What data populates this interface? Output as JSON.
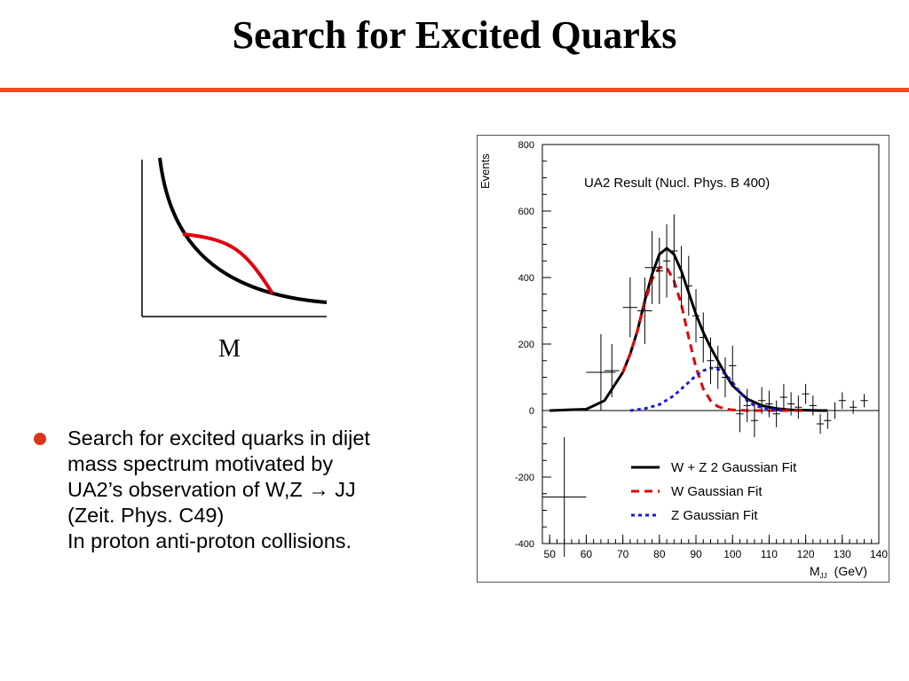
{
  "slide": {
    "title": "Search for Excited Quarks",
    "accent_color": "#ef4a1f"
  },
  "sketch": {
    "axis_label": "M",
    "background_curve_color": "#000000",
    "signal_curve_color": "#e0000b"
  },
  "bullet": {
    "marker_color": "#e0341a",
    "lines": [
      "Search for excited quarks in dijet",
      "mass spectrum motivated by",
      "UA2’s observation of W,Z → JJ",
      "(Zeit. Phys. C49)",
      "In proton anti-proton collisions."
    ]
  },
  "chart_data": {
    "type": "line",
    "title": "UA2 Result (Nucl. Phys. B 400)",
    "ylabel": "Events",
    "xlabel": "M",
    "xlabel_sub": "JJ",
    "xlabel_unit": "(GeV)",
    "xlim": [
      48,
      140
    ],
    "ylim": [
      -400,
      800
    ],
    "xticks": [
      50,
      60,
      70,
      80,
      90,
      100,
      110,
      120,
      130,
      140
    ],
    "yticks": [
      -400,
      -200,
      0,
      200,
      400,
      600,
      800
    ],
    "grid": false,
    "legend_position": "bottom-right",
    "series": [
      {
        "name": "W + Z 2 Gaussian Fit",
        "color": "#000000",
        "style": "solid",
        "x": [
          50,
          60,
          65,
          70,
          72,
          74,
          76,
          78,
          80,
          82,
          84,
          86,
          88,
          90,
          92,
          94,
          96,
          98,
          100,
          104,
          108,
          112,
          116,
          120,
          124,
          126
        ],
        "y": [
          0,
          4,
          30,
          115,
          170,
          240,
          330,
          410,
          470,
          488,
          470,
          420,
          355,
          290,
          235,
          190,
          150,
          110,
          75,
          35,
          15,
          6,
          2,
          1,
          0,
          0
        ]
      },
      {
        "name": "W Gaussian Fit",
        "color": "#e00000",
        "style": "dashed",
        "x": [
          70,
          72,
          74,
          76,
          78,
          80,
          82,
          84,
          86,
          88,
          90,
          92,
          94,
          96,
          98,
          100,
          102,
          104,
          108,
          112,
          116,
          120
        ],
        "y": [
          115,
          170,
          240,
          325,
          395,
          430,
          430,
          390,
          320,
          220,
          130,
          65,
          30,
          12,
          5,
          2,
          1,
          0,
          0,
          0,
          0,
          0
        ]
      },
      {
        "name": "Z Gaussian Fit",
        "color": "#1a1adc",
        "style": "dotted",
        "x": [
          72,
          76,
          80,
          84,
          88,
          90,
          92,
          94,
          96,
          98,
          100,
          102,
          104,
          106,
          110,
          114
        ],
        "y": [
          0,
          6,
          18,
          45,
          85,
          105,
          120,
          128,
          125,
          110,
          85,
          55,
          30,
          15,
          4,
          0
        ]
      }
    ],
    "data_points": {
      "x": [
        64,
        67,
        72,
        76,
        78,
        80,
        82,
        84,
        86,
        88,
        90,
        92,
        94,
        96,
        98,
        100,
        102,
        104,
        106,
        108,
        110,
        112,
        114,
        116,
        118,
        120,
        122,
        124,
        126,
        128,
        130,
        133,
        136
      ],
      "y": [
        115,
        120,
        310,
        300,
        430,
        420,
        450,
        480,
        400,
        375,
        285,
        220,
        150,
        130,
        100,
        135,
        -10,
        15,
        -30,
        30,
        20,
        -10,
        40,
        20,
        10,
        50,
        15,
        -40,
        -30,
        0,
        30,
        10,
        30
      ],
      "yerr": [
        115,
        80,
        90,
        100,
        110,
        100,
        110,
        110,
        95,
        90,
        80,
        75,
        70,
        65,
        60,
        60,
        55,
        50,
        50,
        40,
        40,
        40,
        40,
        35,
        35,
        30,
        30,
        30,
        25,
        25,
        25,
        20,
        20
      ],
      "xerr": [
        4,
        2,
        2,
        2,
        2,
        1,
        1,
        1,
        1,
        1,
        1,
        1,
        1,
        1,
        1,
        1,
        1,
        1,
        1,
        1,
        1,
        1,
        1,
        1,
        1,
        1,
        1,
        1,
        1,
        1,
        1,
        1,
        1
      ]
    },
    "extra_point": {
      "x": 54,
      "y": -260,
      "xerr": 6,
      "yerr": 180
    }
  }
}
